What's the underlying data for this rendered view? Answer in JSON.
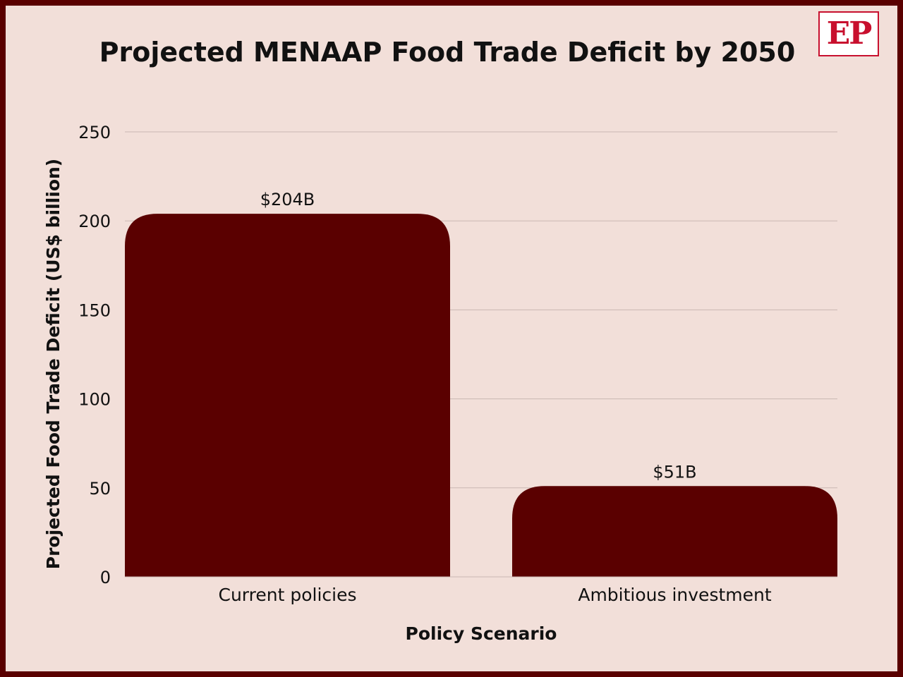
{
  "header": {
    "title": "Projected MENAAP Food Trade Deficit by 2050",
    "logo_text": "EP"
  },
  "colors": {
    "background": "#f2dfd9",
    "border": "#5a0000",
    "bar": "#5a0000",
    "gridline": "#c9b7b2",
    "logo_red": "#c8102e"
  },
  "chart_data": {
    "type": "bar",
    "title": "Projected MENAAP Food Trade Deficit by 2050",
    "xlabel": "Policy Scenario",
    "ylabel": "Projected Food Trade Deficit (US$ billion)",
    "categories": [
      "Current policies",
      "Ambitious investment"
    ],
    "values": [
      204,
      51
    ],
    "data_labels": [
      "$204B",
      "$51B"
    ],
    "ylim": [
      0,
      250
    ],
    "yticks": [
      0,
      50,
      100,
      150,
      200,
      250
    ],
    "grid": true,
    "legend": "none"
  }
}
